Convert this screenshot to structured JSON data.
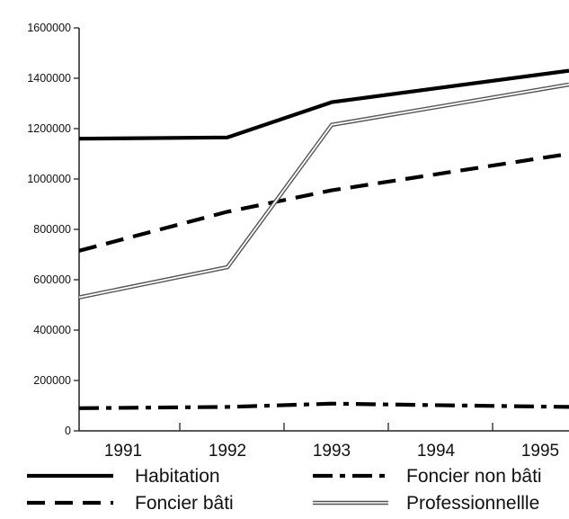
{
  "chart_data": {
    "type": "line",
    "title": "",
    "xlabel": "",
    "ylabel": "",
    "x": [
      "1991",
      "1992",
      "1993",
      "1994",
      "1995"
    ],
    "ylim": [
      0,
      1600000
    ],
    "yticks": [
      "0",
      "200000",
      "400000",
      "600000",
      "800000",
      "1000000",
      "1200000",
      "1400000",
      "1600000"
    ],
    "grid": false,
    "legend_position": "bottom",
    "series": [
      {
        "name": "Habitation",
        "style": "solid",
        "color": "#000000",
        "points": [
          [
            1991,
            1160000
          ],
          [
            1992,
            1165000
          ],
          [
            1993,
            1305000
          ],
          [
            1995,
            1430000
          ]
        ]
      },
      {
        "name": "Foncier bâti",
        "style": "dashed",
        "color": "#000000",
        "points": [
          [
            1991,
            715000
          ],
          [
            1992,
            870000
          ],
          [
            1993,
            955000
          ],
          [
            1995,
            1100000
          ]
        ]
      },
      {
        "name": "Foncier non bâti",
        "style": "dashdot",
        "color": "#000000",
        "points": [
          [
            1991,
            90000
          ],
          [
            1992,
            95000
          ],
          [
            1993,
            108000
          ],
          [
            1994,
            102000
          ],
          [
            1995,
            95000
          ]
        ]
      },
      {
        "name": "Professionnellle",
        "style": "double",
        "color": "#555555",
        "points": [
          [
            1991,
            530000
          ],
          [
            1992,
            650000
          ],
          [
            1993,
            1215000
          ],
          [
            1995,
            1375000
          ]
        ]
      }
    ]
  }
}
